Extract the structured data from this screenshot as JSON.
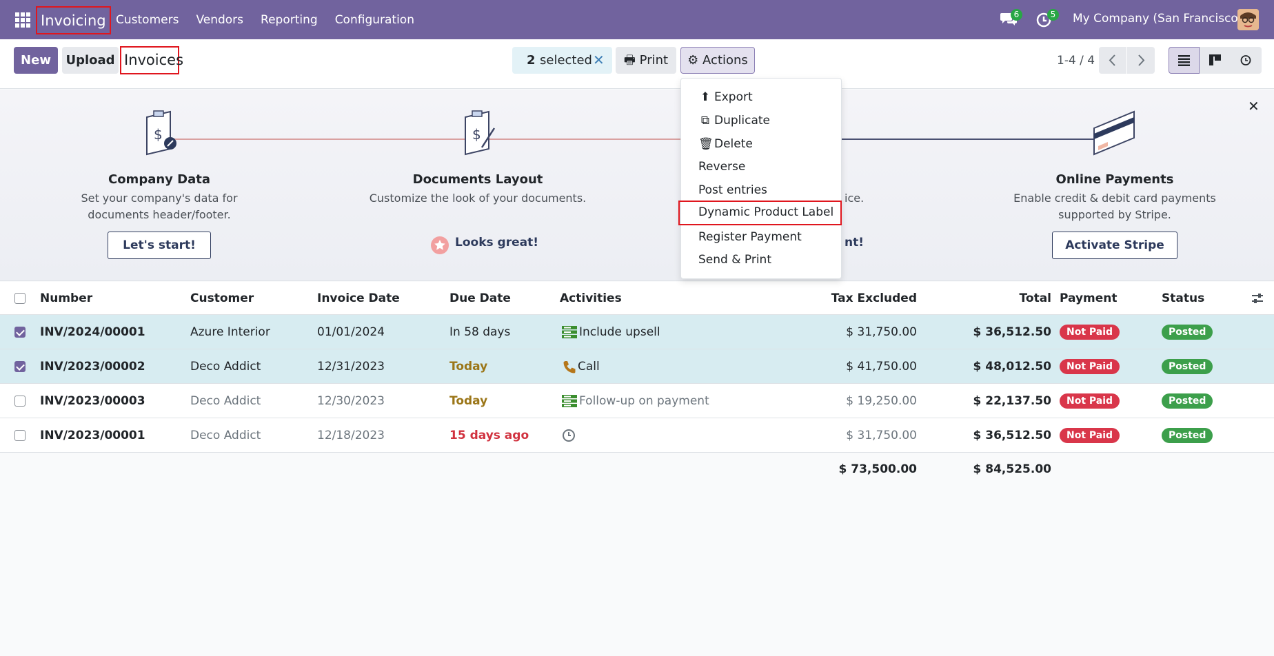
{
  "navbar": {
    "app_name": "Invoicing",
    "menu": [
      "Customers",
      "Vendors",
      "Reporting",
      "Configuration"
    ],
    "messages_count": "6",
    "activities_count": "5",
    "company": "My Company (San Francisco)"
  },
  "control": {
    "new_label": "New",
    "upload_label": "Upload",
    "breadcrumb": "Invoices",
    "selected_count": "2",
    "selected_label": "selected",
    "print_label": "Print",
    "actions_label": "Actions",
    "pager": "1-4 / 4"
  },
  "onboarding": {
    "steps": [
      {
        "title": "Company Data",
        "desc": "Set your company's data for documents header/footer.",
        "button": "Let's start!"
      },
      {
        "title": "Documents Layout",
        "desc": "Customize the look of your documents.",
        "done": "Looks great!"
      },
      {
        "title": "",
        "desc_fragment": "ice.",
        "done_fragment": "nt!"
      },
      {
        "title": "Online Payments",
        "desc": "Enable credit & debit card payments supported by Stripe.",
        "button": "Activate Stripe"
      }
    ]
  },
  "actions_menu": {
    "items": [
      "Export",
      "Duplicate",
      "Delete",
      "Reverse",
      "Post entries",
      "Dynamic Product Label",
      "Register Payment",
      "Send & Print"
    ],
    "highlighted": "Dynamic Product Label"
  },
  "table": {
    "headers": [
      "Number",
      "Customer",
      "Invoice Date",
      "Due Date",
      "Activities",
      "Tax Excluded",
      "Total",
      "Payment",
      "Status"
    ],
    "rows": [
      {
        "number": "INV/2024/00001",
        "customer": "Azure Interior",
        "invoice_date": "01/01/2024",
        "due_date": "In 58 days",
        "activity": "Include upsell",
        "tax_excluded": "$ 31,750.00",
        "total": "$ 36,512.50",
        "payment": "Not Paid",
        "status": "Posted"
      },
      {
        "number": "INV/2023/00002",
        "customer": "Deco Addict",
        "invoice_date": "12/31/2023",
        "due_date": "Today",
        "activity": "Call",
        "tax_excluded": "$ 41,750.00",
        "total": "$ 48,012.50",
        "payment": "Not Paid",
        "status": "Posted"
      },
      {
        "number": "INV/2023/00003",
        "customer": "Deco Addict",
        "invoice_date": "12/30/2023",
        "due_date": "Today",
        "activity": "Follow-up on payment",
        "tax_excluded": "$ 19,250.00",
        "total": "$ 22,137.50",
        "payment": "Not Paid",
        "status": "Posted"
      },
      {
        "number": "INV/2023/00001",
        "customer": "Deco Addict",
        "invoice_date": "12/18/2023",
        "due_date": "15 days ago",
        "activity": "",
        "tax_excluded": "$ 31,750.00",
        "total": "$ 36,512.50",
        "payment": "Not Paid",
        "status": "Posted"
      }
    ],
    "totals": {
      "tax_excluded": "$ 73,500.00",
      "total": "$ 84,525.00"
    }
  },
  "colors": {
    "brand": "#71639e",
    "highlight": "#e0161e",
    "not_paid": "#d9364a",
    "posted": "#3c9f4b"
  }
}
